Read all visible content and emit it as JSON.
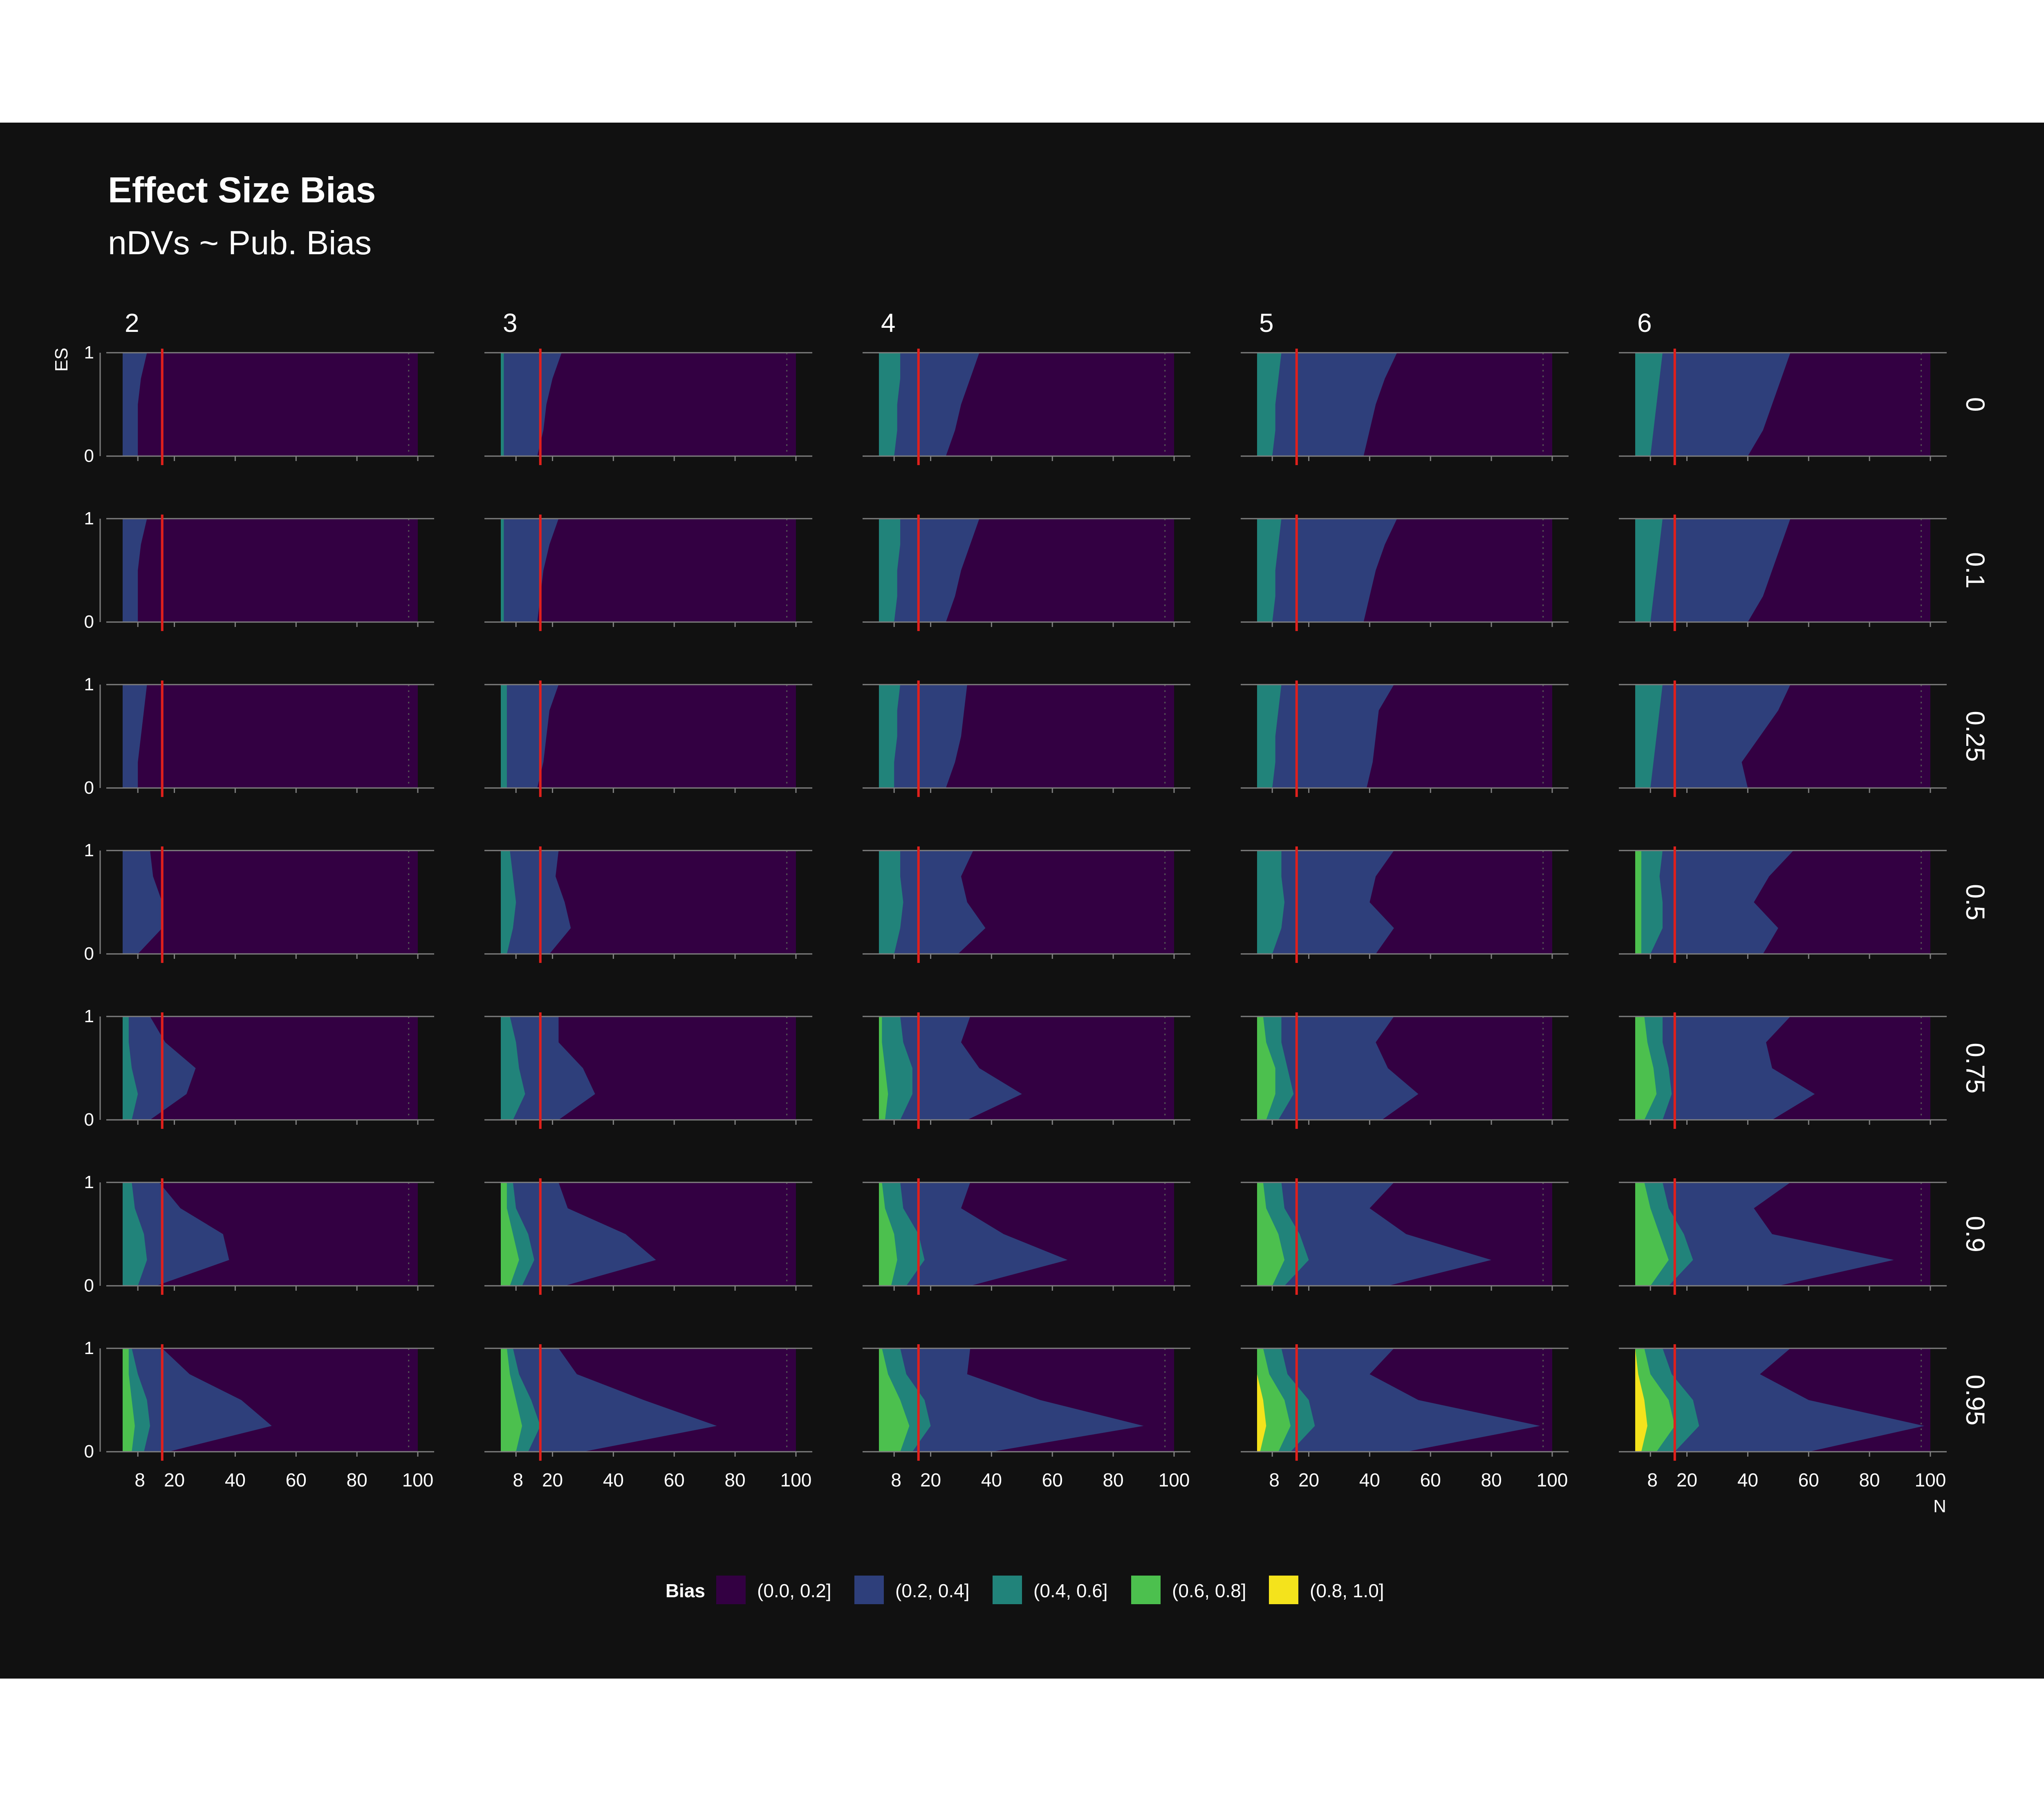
{
  "title": "Effect Size Bias",
  "subtitle": "nDVs ~ Pub. Bias",
  "colors": {
    "background": "#111111",
    "text": "#ffffff",
    "reference_line": "#e0201c",
    "axis": "#808080"
  },
  "chart_data": {
    "type": "heatmap",
    "facet_cols": {
      "title": "",
      "values": [
        "2",
        "3",
        "4",
        "5",
        "6"
      ]
    },
    "facet_rows": {
      "title": "",
      "values": [
        "0",
        "0.1",
        "0.25",
        "0.5",
        "0.75",
        "0.9",
        "0.95"
      ]
    },
    "xlabel": "N",
    "ylabel": "ES",
    "xlim": [
      3,
      100
    ],
    "ylim": [
      0,
      1
    ],
    "x_ticks": [
      8,
      20,
      40,
      60,
      80,
      100
    ],
    "y_ticks": [
      0,
      1
    ],
    "reference_line_x": 16,
    "legend": {
      "title": "Bias",
      "position": "bottom",
      "bins": [
        {
          "label": "(0.0, 0.2]",
          "color": "#330042"
        },
        {
          "label": "(0.2, 0.4]",
          "color": "#2e3f7b"
        },
        {
          "label": "(0.4, 0.6]",
          "color": "#21837a"
        },
        {
          "label": "(0.6, 0.8]",
          "color": "#4cc04e"
        },
        {
          "label": "(0.8, 1.0]",
          "color": "#f4e31c"
        }
      ]
    },
    "contour_y": [
      0,
      0.25,
      0.5,
      0.75,
      1
    ],
    "contours_note": "",
    "contours": [
      [
        {
          "b02": [
            8,
            8,
            8,
            9,
            11
          ],
          "b04": null,
          "b06": null,
          "b08": null
        },
        {
          "b02": [
            8,
            8,
            8,
            9,
            11
          ],
          "b04": null,
          "b06": null,
          "b08": null
        },
        {
          "b02": [
            8,
            8,
            9,
            10,
            11
          ],
          "b04": null,
          "b06": null,
          "b08": null
        },
        {
          "b02": [
            8,
            16,
            16,
            13,
            12
          ],
          "b04": null,
          "b06": null,
          "b08": null
        },
        {
          "b02": [
            12,
            24,
            27,
            17,
            12
          ],
          "b04": [
            6,
            8,
            6,
            5,
            5
          ],
          "b06": null,
          "b08": null
        },
        {
          "b02": [
            14,
            38,
            36,
            22,
            15
          ],
          "b04": [
            8,
            11,
            10,
            7,
            6
          ],
          "b06": null,
          "b08": null
        },
        {
          "b02": [
            18,
            52,
            42,
            25,
            16
          ],
          "b04": [
            10,
            12,
            11,
            8,
            6
          ],
          "b06": [
            6,
            7,
            6,
            5,
            5
          ],
          "b08": null
        }
      ],
      [
        {
          "b02": [
            15,
            17,
            18,
            20,
            23
          ],
          "b04": [
            4,
            4,
            4,
            4,
            4
          ],
          "b06": null,
          "b08": null
        },
        {
          "b02": [
            15,
            16,
            17,
            19,
            22
          ],
          "b04": [
            4,
            4,
            4,
            4,
            4
          ],
          "b06": null,
          "b08": null
        },
        {
          "b02": [
            15,
            17,
            18,
            19,
            22
          ],
          "b04": [
            5,
            5,
            5,
            5,
            5
          ],
          "b06": null,
          "b08": null
        },
        {
          "b02": [
            19,
            26,
            24,
            21,
            22
          ],
          "b04": [
            5,
            7,
            8,
            7,
            6
          ],
          "b06": null,
          "b08": null
        },
        {
          "b02": [
            22,
            34,
            30,
            22,
            22
          ],
          "b04": [
            7,
            11,
            9,
            8,
            6
          ],
          "b06": null,
          "b08": null
        },
        {
          "b02": [
            24,
            54,
            44,
            25,
            22
          ],
          "b04": [
            10,
            14,
            12,
            8,
            7
          ],
          "b06": [
            6,
            9,
            7,
            5,
            5
          ],
          "b08": null
        },
        {
          "b02": [
            30,
            74,
            50,
            28,
            22
          ],
          "b04": [
            12,
            16,
            13,
            9,
            7
          ],
          "b06": [
            8,
            10,
            8,
            6,
            5
          ],
          "b08": null
        }
      ],
      [
        {
          "b02": [
            25,
            28,
            30,
            33,
            36
          ],
          "b04": [
            8,
            9,
            9,
            10,
            10
          ],
          "b06": null,
          "b08": null
        },
        {
          "b02": [
            25,
            28,
            30,
            33,
            36
          ],
          "b04": [
            8,
            9,
            9,
            10,
            10
          ],
          "b06": null,
          "b08": null
        },
        {
          "b02": [
            25,
            28,
            30,
            31,
            32
          ],
          "b04": [
            8,
            8,
            9,
            9,
            10
          ],
          "b06": null,
          "b08": null
        },
        {
          "b02": [
            29,
            38,
            32,
            30,
            34
          ],
          "b04": [
            8,
            10,
            11,
            10,
            10
          ],
          "b06": null,
          "b08": null
        },
        {
          "b02": [
            32,
            50,
            36,
            30,
            33
          ],
          "b04": [
            10,
            14,
            14,
            11,
            10
          ],
          "b06": [
            5,
            6,
            5,
            4,
            4
          ],
          "b08": null
        },
        {
          "b02": [
            33,
            65,
            44,
            30,
            33
          ],
          "b04": [
            12,
            18,
            16,
            11,
            10
          ],
          "b06": [
            7,
            9,
            8,
            5,
            4
          ],
          "b08": null
        },
        {
          "b02": [
            40,
            90,
            56,
            32,
            33
          ],
          "b04": [
            14,
            20,
            18,
            12,
            10
          ],
          "b06": [
            10,
            13,
            10,
            6,
            4
          ],
          "b08": null
        }
      ],
      [
        {
          "b02": [
            38,
            40,
            42,
            45,
            49
          ],
          "b04": [
            8,
            9,
            9,
            10,
            11
          ],
          "b06": null,
          "b08": null
        },
        {
          "b02": [
            38,
            40,
            42,
            45,
            49
          ],
          "b04": [
            8,
            9,
            9,
            10,
            11
          ],
          "b06": null,
          "b08": null
        },
        {
          "b02": [
            39,
            41,
            42,
            43,
            48
          ],
          "b04": [
            8,
            9,
            9,
            10,
            11
          ],
          "b06": null,
          "b08": null
        },
        {
          "b02": [
            42,
            48,
            40,
            42,
            48
          ],
          "b04": [
            8,
            11,
            12,
            11,
            11
          ],
          "b06": null,
          "b08": null
        },
        {
          "b02": [
            44,
            56,
            46,
            42,
            48
          ],
          "b04": [
            10,
            15,
            13,
            11,
            11
          ],
          "b06": [
            6,
            9,
            9,
            6,
            5
          ],
          "b08": null
        },
        {
          "b02": [
            46,
            80,
            52,
            40,
            48
          ],
          "b04": [
            12,
            20,
            17,
            12,
            11
          ],
          "b06": [
            8,
            12,
            10,
            6,
            5
          ],
          "b08": null
        },
        {
          "b02": [
            52,
            96,
            56,
            40,
            48
          ],
          "b04": [
            14,
            22,
            20,
            13,
            11
          ],
          "b06": [
            10,
            14,
            12,
            7,
            5
          ],
          "b08": [
            4,
            6,
            5,
            3,
            3
          ]
        }
      ],
      [
        {
          "b02": [
            40,
            45,
            48,
            51,
            54
          ],
          "b04": [
            8,
            9,
            10,
            11,
            12
          ],
          "b06": null,
          "b08": null
        },
        {
          "b02": [
            40,
            45,
            48,
            51,
            54
          ],
          "b04": [
            8,
            9,
            10,
            11,
            12
          ],
          "b06": null,
          "b08": null
        },
        {
          "b02": [
            40,
            38,
            44,
            50,
            54
          ],
          "b04": [
            8,
            9,
            10,
            11,
            12
          ],
          "b06": null,
          "b08": null
        },
        {
          "b02": [
            45,
            50,
            42,
            47,
            55
          ],
          "b04": [
            8,
            12,
            12,
            11,
            12
          ],
          "b06": [
            5,
            5,
            5,
            5,
            5
          ],
          "b08": null
        },
        {
          "b02": [
            48,
            62,
            48,
            46,
            54
          ],
          "b04": [
            12,
            15,
            14,
            12,
            12
          ],
          "b06": [
            6,
            10,
            9,
            7,
            6
          ],
          "b08": null
        },
        {
          "b02": [
            50,
            88,
            48,
            42,
            54
          ],
          "b04": [
            14,
            22,
            19,
            14,
            12
          ],
          "b06": [
            8,
            14,
            11,
            8,
            6
          ],
          "b08": null
        },
        {
          "b02": [
            60,
            98,
            60,
            44,
            54
          ],
          "b04": [
            16,
            24,
            22,
            15,
            12
          ],
          "b06": [
            10,
            16,
            14,
            8,
            6
          ],
          "b08": [
            5,
            7,
            6,
            4,
            3
          ]
        }
      ]
    ]
  }
}
